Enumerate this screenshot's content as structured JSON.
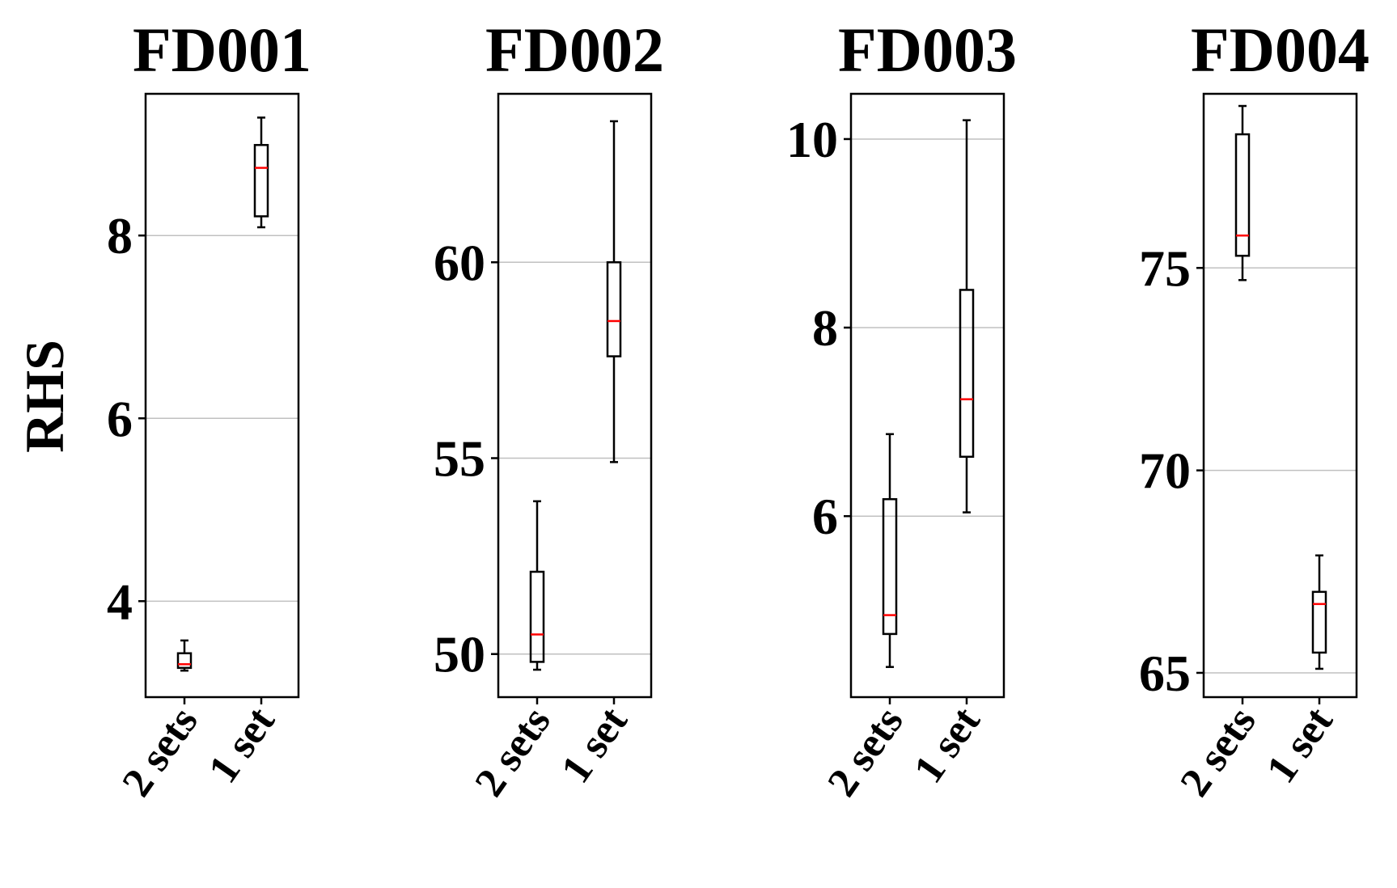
{
  "y_axis_label": "RHS",
  "chart_data": [
    {
      "type": "boxplot",
      "title": "FD001",
      "ylabel": "RHS",
      "categories": [
        "2 sets",
        "1 set"
      ],
      "ylim": [
        2.95,
        9.55
      ],
      "yticks": [
        4,
        6,
        8
      ],
      "grid": "horizontal",
      "boxes": [
        {
          "category": "2 sets",
          "whisker_low": 3.24,
          "q1": 3.27,
          "median": 3.31,
          "q3": 3.43,
          "whisker_high": 3.57
        },
        {
          "category": "1 set",
          "whisker_low": 8.09,
          "q1": 8.21,
          "median": 8.74,
          "q3": 8.99,
          "whisker_high": 9.29
        }
      ]
    },
    {
      "type": "boxplot",
      "title": "FD002",
      "categories": [
        "2 sets",
        "1 set"
      ],
      "ylim": [
        48.9,
        64.3
      ],
      "yticks": [
        50,
        55,
        60
      ],
      "grid": "horizontal",
      "boxes": [
        {
          "category": "2 sets",
          "whisker_low": 49.6,
          "q1": 49.8,
          "median": 50.5,
          "q3": 52.1,
          "whisker_high": 53.9
        },
        {
          "category": "1 set",
          "whisker_low": 54.9,
          "q1": 57.6,
          "median": 58.5,
          "q3": 60.0,
          "whisker_high": 63.6
        }
      ]
    },
    {
      "type": "boxplot",
      "title": "FD003",
      "categories": [
        "2 sets",
        "1 set"
      ],
      "ylim": [
        4.08,
        10.48
      ],
      "yticks": [
        6,
        8,
        10
      ],
      "grid": "horizontal",
      "boxes": [
        {
          "category": "2 sets",
          "whisker_low": 4.4,
          "q1": 4.75,
          "median": 4.95,
          "q3": 6.18,
          "whisker_high": 6.87
        },
        {
          "category": "1 set",
          "whisker_low": 6.04,
          "q1": 6.63,
          "median": 7.24,
          "q3": 8.4,
          "whisker_high": 10.2
        }
      ]
    },
    {
      "type": "boxplot",
      "title": "FD004",
      "categories": [
        "2 sets",
        "1 set"
      ],
      "ylim": [
        64.4,
        79.3
      ],
      "yticks": [
        65,
        70,
        75
      ],
      "grid": "horizontal",
      "boxes": [
        {
          "category": "2 sets",
          "whisker_low": 74.7,
          "q1": 75.3,
          "median": 75.8,
          "q3": 78.3,
          "whisker_high": 79.0
        },
        {
          "category": "1 set",
          "whisker_low": 65.1,
          "q1": 65.5,
          "median": 66.7,
          "q3": 67.0,
          "whisker_high": 67.9
        }
      ]
    }
  ],
  "colors": {
    "box": "#000000",
    "median": "#ff0000",
    "grid": "#c0c0c0",
    "axes": "#000000"
  }
}
